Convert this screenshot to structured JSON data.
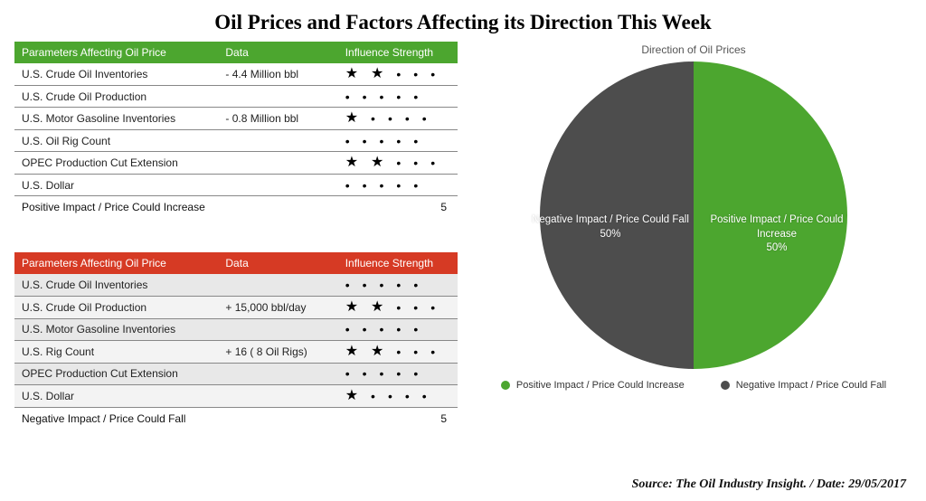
{
  "title": "Oil Prices and Factors Affecting its Direction This Week",
  "columns": {
    "param": "Parameters Affecting Oil Price",
    "data": "Data",
    "influence": "Influence Strength"
  },
  "tables": {
    "positive": {
      "header_color": "#4ca62f",
      "rows": [
        {
          "param": "U.S. Crude Oil Inventories",
          "data": "- 4.4 Million bbl",
          "stars": 2
        },
        {
          "param": "U.S. Crude Oil Production",
          "data": "",
          "stars": 0
        },
        {
          "param": "U.S. Motor Gasoline Inventories",
          "data": "- 0.8 Million bbl",
          "stars": 1
        },
        {
          "param": "U.S. Oil Rig Count",
          "data": "",
          "stars": 0
        },
        {
          "param": "OPEC Production Cut Extension",
          "data": "",
          "stars": 2
        },
        {
          "param": "U.S. Dollar",
          "data": "",
          "stars": 0
        }
      ],
      "footer_label": "Positive Impact / Price Could Increase",
      "footer_total": "5"
    },
    "negative": {
      "header_color": "#d63a24",
      "rows": [
        {
          "param": "U.S. Crude Oil Inventories",
          "data": "",
          "stars": 0
        },
        {
          "param": "U.S. Crude Oil Production",
          "data": "+ 15,000 bbl/day",
          "stars": 2
        },
        {
          "param": "U.S. Motor Gasoline Inventories",
          "data": "",
          "stars": 0
        },
        {
          "param": "U.S. Rig Count",
          "data": "+ 16   ( 8 Oil Rigs)",
          "stars": 2
        },
        {
          "param": "OPEC Production Cut Extension",
          "data": "",
          "stars": 0
        },
        {
          "param": "U.S. Dollar",
          "data": "",
          "stars": 1
        }
      ],
      "footer_label": "Negative Impact / Price Could Fall",
      "footer_total": "5"
    }
  },
  "pie": {
    "title": "Direction of Oil Prices",
    "diameter": 340,
    "slices": [
      {
        "label": "Positive Impact / Price Could Increase",
        "value": 50,
        "pct": "50%",
        "color": "#4ca62f"
      },
      {
        "label": "Negative Impact / Price Could Fall",
        "value": 50,
        "pct": "50%",
        "color": "#4d4d4d"
      }
    ],
    "start_angle_deg": 0,
    "background": "#ffffff"
  },
  "legend": {
    "pos": {
      "label": "Positive Impact / Price Could Increase",
      "color": "#4ca62f"
    },
    "neg": {
      "label": "Negative Impact / Price Could Fall",
      "color": "#4d4d4d"
    }
  },
  "source": "Source: The Oil Industry Insight. / Date: 29/05/2017",
  "style": {
    "star_glyph": "★",
    "dot_glyph": "•",
    "max_strength": 5,
    "title_fontsize": 23,
    "table_fontsize": 12,
    "pie_label_fontsize": 11.5
  }
}
